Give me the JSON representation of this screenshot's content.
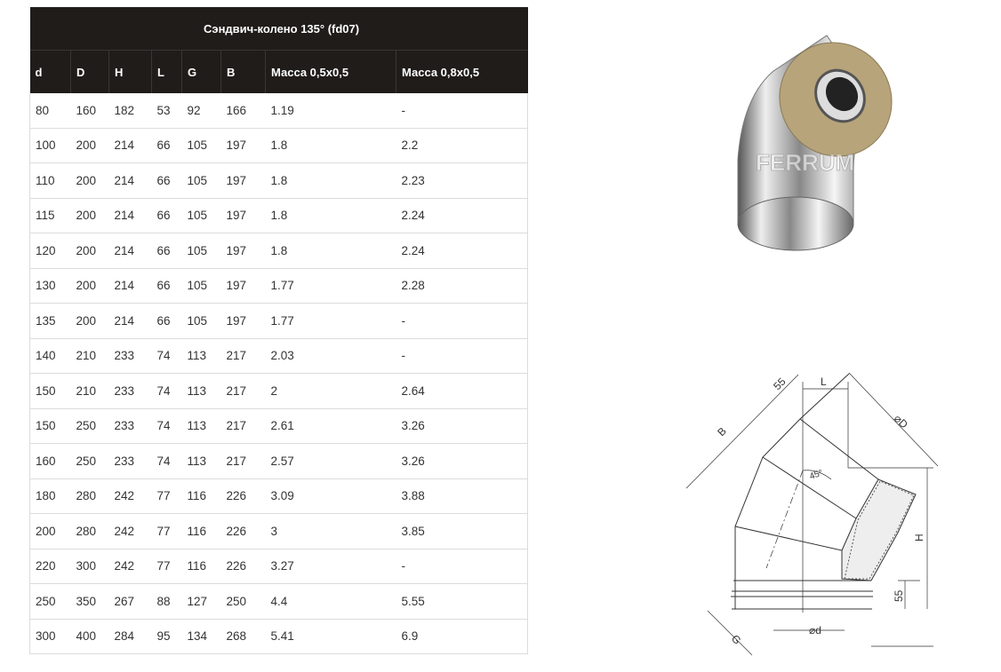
{
  "table": {
    "title": "Сэндвич-колено 135° (fd07)",
    "columns": [
      "d",
      "D",
      "H",
      "L",
      "G",
      "B",
      "Масса 0,5x0,5",
      "Масса 0,8x0,5"
    ],
    "rows": [
      [
        "80",
        "160",
        "182",
        "53",
        "92",
        "166",
        "1.19",
        "-"
      ],
      [
        "100",
        "200",
        "214",
        "66",
        "105",
        "197",
        "1.8",
        "2.2"
      ],
      [
        "110",
        "200",
        "214",
        "66",
        "105",
        "197",
        "1.8",
        "2.23"
      ],
      [
        "115",
        "200",
        "214",
        "66",
        "105",
        "197",
        "1.8",
        "2.24"
      ],
      [
        "120",
        "200",
        "214",
        "66",
        "105",
        "197",
        "1.8",
        "2.24"
      ],
      [
        "130",
        "200",
        "214",
        "66",
        "105",
        "197",
        "1.77",
        "2.28"
      ],
      [
        "135",
        "200",
        "214",
        "66",
        "105",
        "197",
        "1.77",
        "-"
      ],
      [
        "140",
        "210",
        "233",
        "74",
        "113",
        "217",
        "2.03",
        "-"
      ],
      [
        "150",
        "210",
        "233",
        "74",
        "113",
        "217",
        "2",
        "2.64"
      ],
      [
        "150",
        "250",
        "233",
        "74",
        "113",
        "217",
        "2.61",
        "3.26"
      ],
      [
        "160",
        "250",
        "233",
        "74",
        "113",
        "217",
        "2.57",
        "3.26"
      ],
      [
        "180",
        "280",
        "242",
        "77",
        "116",
        "226",
        "3.09",
        "3.88"
      ],
      [
        "200",
        "280",
        "242",
        "77",
        "116",
        "226",
        "3",
        "3.85"
      ],
      [
        "220",
        "300",
        "242",
        "77",
        "116",
        "226",
        "3.27",
        "-"
      ],
      [
        "250",
        "350",
        "267",
        "88",
        "127",
        "250",
        "4.4",
        "5.55"
      ],
      [
        "300",
        "400",
        "284",
        "95",
        "134",
        "268",
        "5.41",
        "6.9"
      ]
    ]
  },
  "product_image": {
    "watermark": "FERRUM"
  },
  "drawing": {
    "labels": {
      "B": "B",
      "L": "L",
      "D": "⌀D",
      "H": "H",
      "G": "G",
      "d": "⌀d",
      "top55": "55",
      "bottom55": "55",
      "angle": "45°"
    }
  }
}
